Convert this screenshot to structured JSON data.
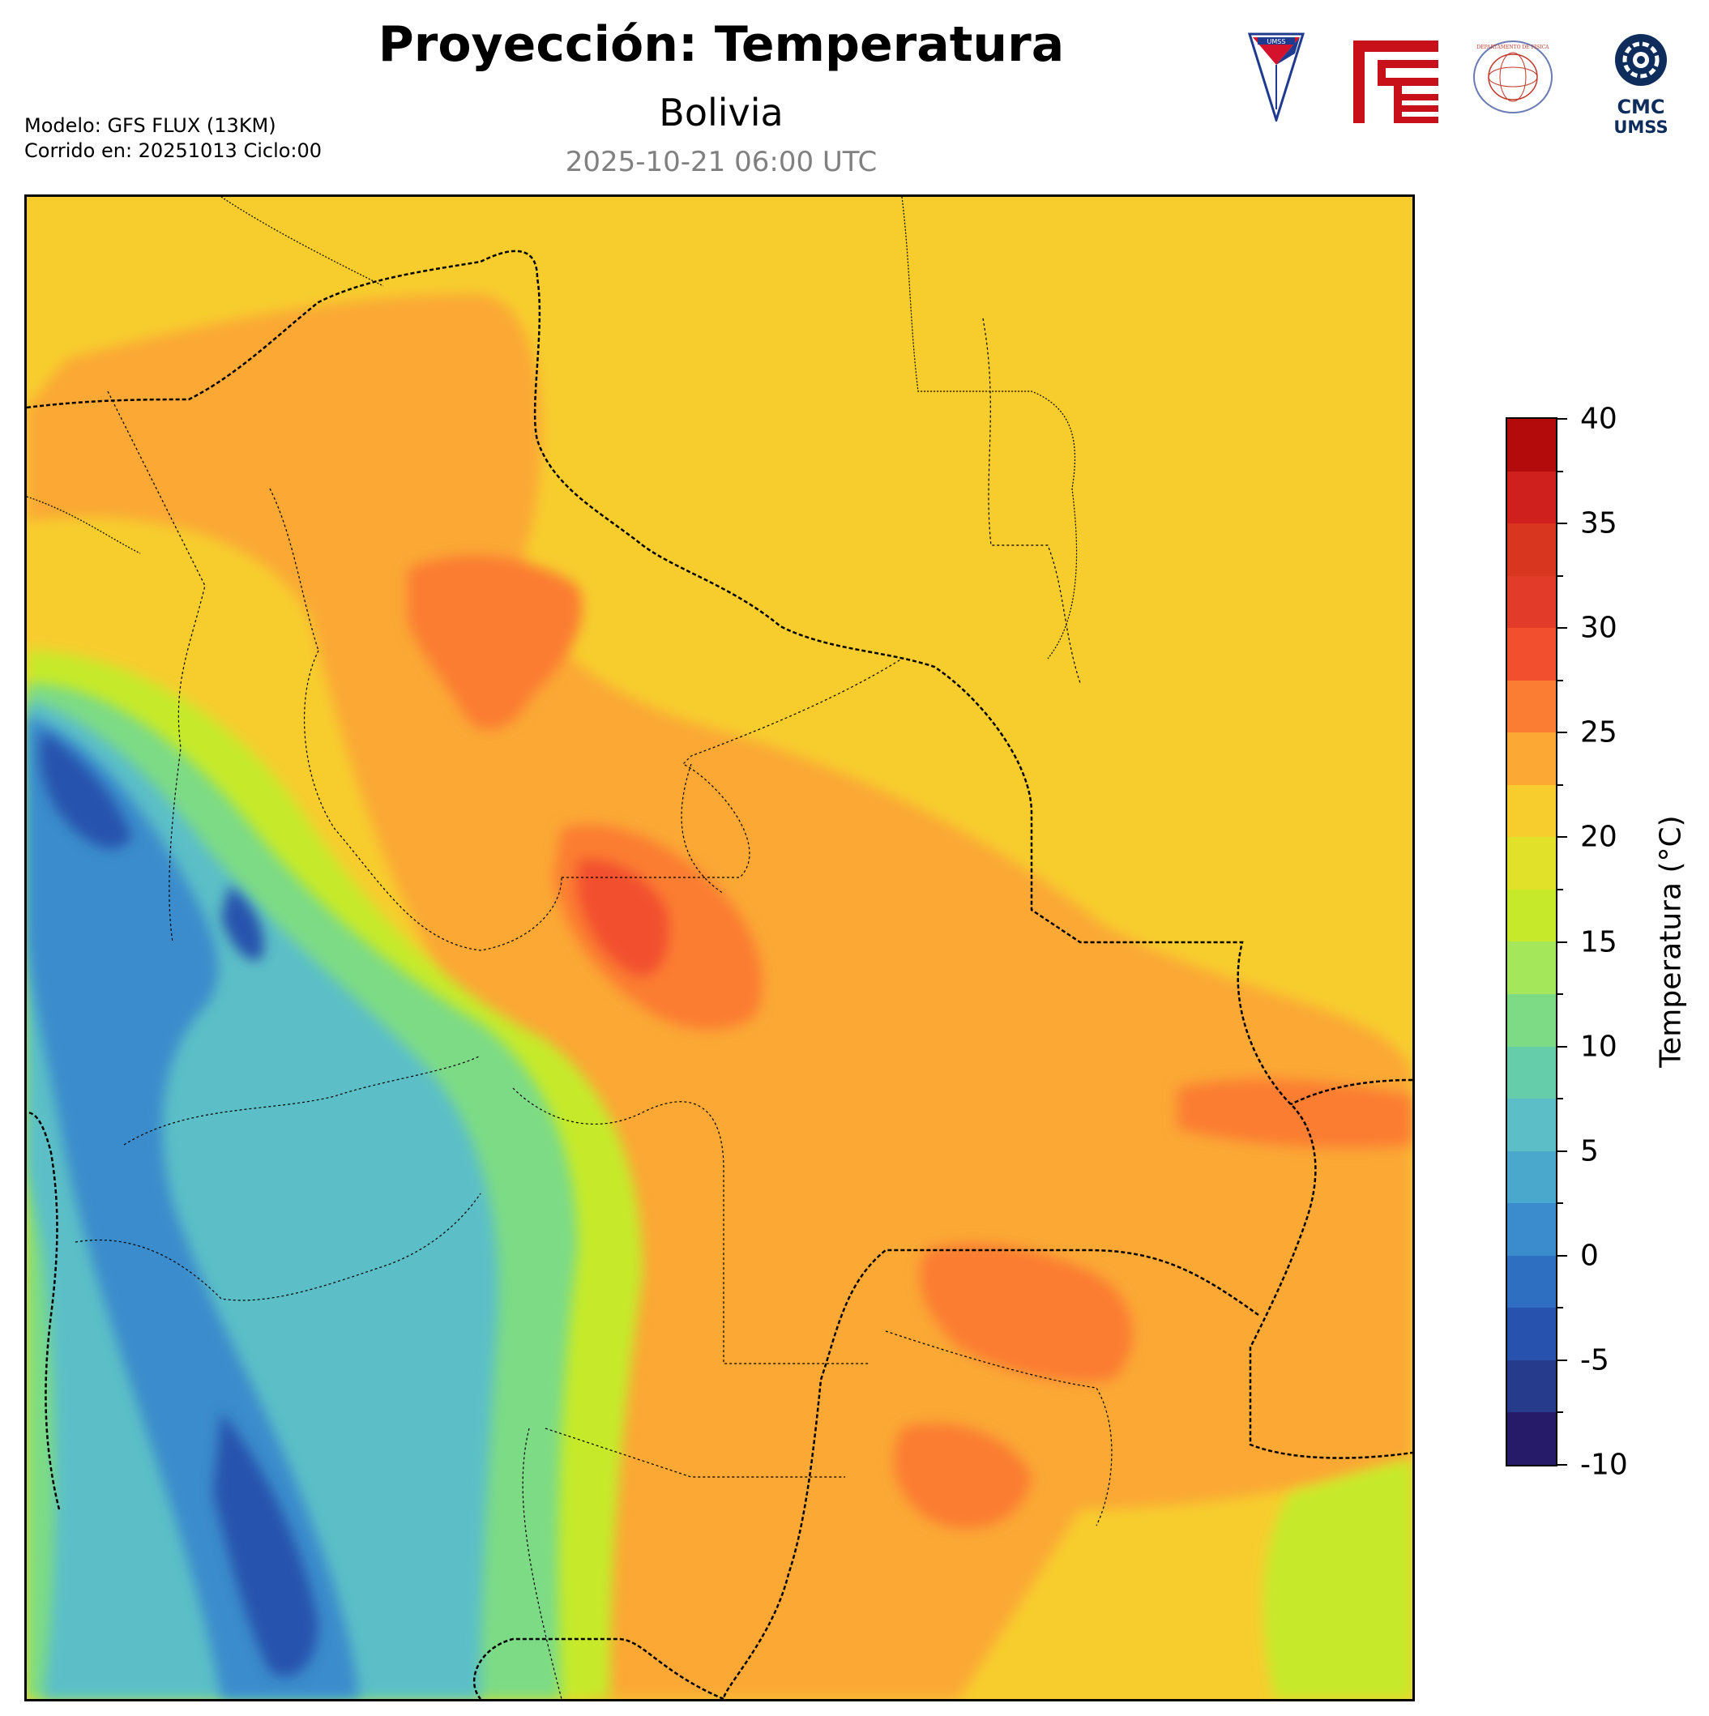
{
  "header": {
    "title": "Proyección: Temperatura",
    "subtitle": "Bolivia",
    "datetime": "2025-10-21 06:00 UTC",
    "model_line": "Modelo: GFS FLUX (13KM)",
    "run_line": "Corrido en: 20251013 Ciclo:00"
  },
  "logos": [
    {
      "name": "umss-shield-logo",
      "text": "UMSS"
    },
    {
      "name": "red-fcyt-logo",
      "text": ""
    },
    {
      "name": "departamento-fisica-seal",
      "text": "DEPARTAMENTO DE FISICA"
    },
    {
      "name": "cmc-umss-logo",
      "text": "CMC UMSS"
    }
  ],
  "map": {
    "region": "Bolivia",
    "variable": "Temperatura",
    "units": "°C"
  },
  "colorbar": {
    "label": "Temperatura (°C)",
    "min": -10,
    "max": 40,
    "step": 2.5,
    "tick_labels": [
      "40",
      "35",
      "30",
      "25",
      "20",
      "15",
      "10",
      "5",
      "0",
      "-5",
      "-10"
    ],
    "colors_top_to_bottom": [
      "#b30b0b",
      "#d0201d",
      "#d9361f",
      "#e33b2a",
      "#f24f2f",
      "#fb7d33",
      "#fba835",
      "#f7cd2e",
      "#e0e128",
      "#c6ea29",
      "#a4e75a",
      "#7ddb85",
      "#66cdaa",
      "#5cbfc7",
      "#4aa8cc",
      "#3a8ccc",
      "#2f6fc2",
      "#2752ad",
      "#263b8c",
      "#251b68"
    ]
  }
}
